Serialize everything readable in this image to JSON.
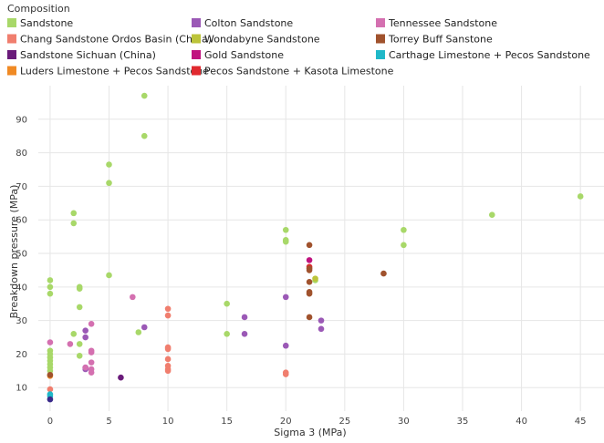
{
  "chart_data": {
    "type": "scatter",
    "xlabel": "Sigma 3 (MPa)",
    "ylabel": "Breakdown pressure (MPa)",
    "xlim": [
      -1,
      47
    ],
    "ylim": [
      3,
      100
    ],
    "xticks": [
      0,
      5,
      10,
      15,
      20,
      25,
      30,
      35,
      40,
      45
    ],
    "yticks": [
      10,
      20,
      30,
      40,
      50,
      60,
      70,
      80,
      90
    ],
    "grid": true,
    "legend": {
      "title": "Composition",
      "placement": "top-left"
    },
    "series": [
      {
        "name": "Sandstone",
        "color": "#a8d869",
        "points": [
          [
            0,
            42
          ],
          [
            0,
            40
          ],
          [
            0,
            38
          ],
          [
            0,
            21
          ],
          [
            0,
            20
          ],
          [
            0,
            19
          ],
          [
            0,
            18
          ],
          [
            0,
            17
          ],
          [
            0,
            16
          ],
          [
            0,
            15
          ],
          [
            2,
            62
          ],
          [
            2,
            59
          ],
          [
            2,
            26
          ],
          [
            2.5,
            40
          ],
          [
            2.5,
            39.5
          ],
          [
            2.5,
            34
          ],
          [
            2.5,
            23
          ],
          [
            2.5,
            19.5
          ],
          [
            5,
            76.5
          ],
          [
            5,
            71
          ],
          [
            5,
            43.5
          ],
          [
            7.5,
            26.5
          ],
          [
            8,
            97
          ],
          [
            8,
            85
          ],
          [
            15,
            35
          ],
          [
            15,
            26
          ],
          [
            20,
            57
          ],
          [
            20,
            54
          ],
          [
            20,
            53.5
          ],
          [
            22.5,
            42
          ],
          [
            30,
            57
          ],
          [
            30,
            52.5
          ],
          [
            37.5,
            61.5
          ],
          [
            45,
            67
          ]
        ]
      },
      {
        "name": "Chang Sandstone Ordos Basin (China)",
        "color": "#f07e6e",
        "points": [
          [
            0,
            9.5
          ],
          [
            10,
            33.5
          ],
          [
            10,
            31.5
          ],
          [
            10,
            22
          ],
          [
            10,
            21.5
          ],
          [
            10,
            18.5
          ],
          [
            10,
            16.5
          ],
          [
            10,
            15.5
          ],
          [
            10,
            15
          ],
          [
            20,
            14.5
          ],
          [
            20,
            14
          ]
        ]
      },
      {
        "name": "Sandstone Sichuan (China)",
        "color": "#6a1b7a",
        "points": [
          [
            6,
            13
          ]
        ]
      },
      {
        "name": "Luders Limestone + Pecos Sandstone",
        "color": "#f08a24",
        "points": [
          [
            0,
            13.5
          ]
        ]
      },
      {
        "name": "Colton Sandstone",
        "color": "#9b59b6",
        "points": [
          [
            3,
            27
          ],
          [
            3,
            25
          ],
          [
            3,
            16
          ],
          [
            3,
            15.5
          ],
          [
            8,
            28
          ],
          [
            16.5,
            31
          ],
          [
            16.5,
            26
          ],
          [
            20,
            37
          ],
          [
            20,
            22.5
          ],
          [
            23,
            30
          ],
          [
            23,
            27.5
          ]
        ]
      },
      {
        "name": "Wondabyne Sandstone",
        "color": "#bcc43a",
        "points": [
          [
            22.5,
            42.5
          ]
        ]
      },
      {
        "name": "Gold Sandstone",
        "color": "#c0137f",
        "points": [
          [
            22,
            48
          ]
        ]
      },
      {
        "name": "Pecos Sandstone + Kasota Limestone",
        "color": "#e0292f",
        "points": [
          [
            22,
            46
          ]
        ]
      },
      {
        "name": "Tennessee Sandstone",
        "color": "#d470b0",
        "points": [
          [
            0,
            23.5
          ],
          [
            1.7,
            23
          ],
          [
            3.5,
            29
          ],
          [
            3.5,
            21
          ],
          [
            3.5,
            20.5
          ],
          [
            3.5,
            17.5
          ],
          [
            3.5,
            15.5
          ],
          [
            3.5,
            14.5
          ],
          [
            3,
            16
          ],
          [
            7,
            37
          ]
        ]
      },
      {
        "name": "Torrey Buff Sanstone",
        "color": "#a0522d",
        "points": [
          [
            0,
            13.8
          ],
          [
            22,
            52.5
          ],
          [
            22,
            45.5
          ],
          [
            22,
            45
          ],
          [
            22,
            41.5
          ],
          [
            22,
            38.5
          ],
          [
            22,
            38
          ],
          [
            22,
            31
          ],
          [
            28.3,
            44
          ]
        ]
      },
      {
        "name": "Carthage Limestone + Pecos Sandstone",
        "color": "#20b8c8",
        "points": [
          [
            0,
            8
          ],
          [
            0,
            7.5
          ]
        ]
      },
      {
        "name": "",
        "color": "#3a2a8a",
        "points": [
          [
            0,
            6.5
          ]
        ]
      }
    ]
  }
}
